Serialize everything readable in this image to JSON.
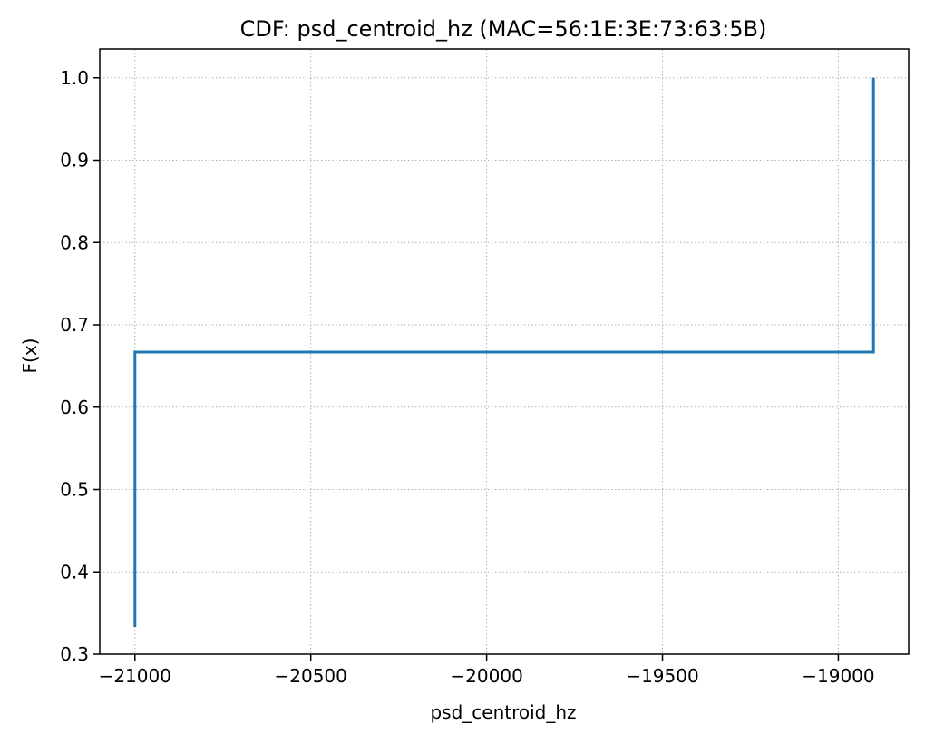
{
  "chart_data": {
    "type": "line",
    "step": true,
    "title": "CDF: psd_centroid_hz (MAC=56:1E:3E:73:63:5B)",
    "xlabel": "psd_centroid_hz",
    "ylabel": "F(x)",
    "xlim": [
      -21100,
      -18800
    ],
    "ylim": [
      0.3,
      1.035
    ],
    "xticks": [
      -21000,
      -20500,
      -20000,
      -19500,
      -19000
    ],
    "xtick_labels": [
      "−21000",
      "−20500",
      "−20000",
      "−19500",
      "−19000"
    ],
    "yticks": [
      0.3,
      0.4,
      0.5,
      0.6,
      0.7,
      0.8,
      0.9,
      1.0
    ],
    "ytick_labels": [
      "0.3",
      "0.4",
      "0.5",
      "0.6",
      "0.7",
      "0.8",
      "0.9",
      "1.0"
    ],
    "grid": true,
    "series": [
      {
        "color": "#1f77b4",
        "x": [
          -21000,
          -21000,
          -18900,
          -18900
        ],
        "y": [
          0.333,
          0.667,
          0.667,
          1.0
        ]
      }
    ]
  }
}
